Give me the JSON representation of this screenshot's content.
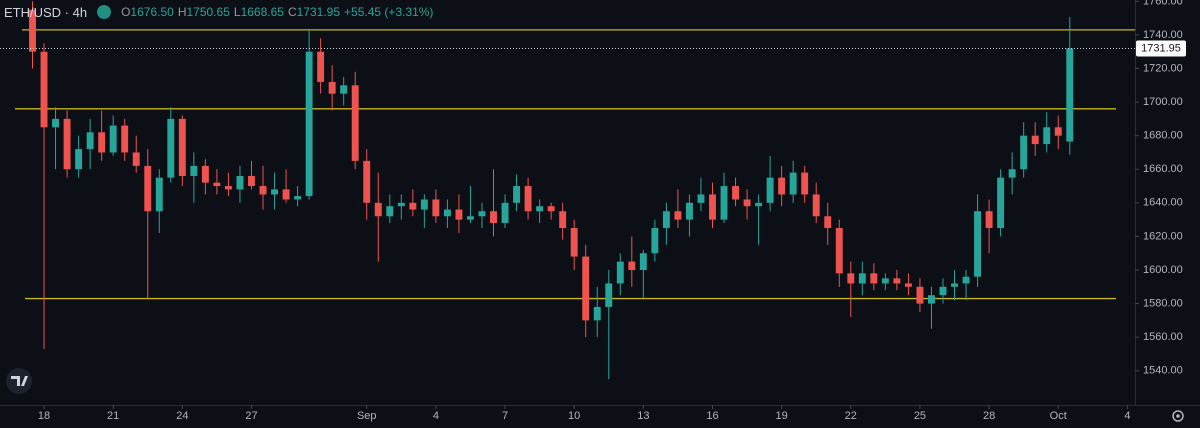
{
  "chart_data": {
    "type": "candlestick",
    "symbol": "ETH/USD · 4h",
    "legend": [
      {
        "key": "O",
        "value": "1676.50"
      },
      {
        "key": "H",
        "value": "1750.65"
      },
      {
        "key": "L",
        "value": "1668.65"
      },
      {
        "key": "C",
        "value": "1731.95"
      },
      {
        "key": "",
        "value": "+55.45 (+3.31%)"
      }
    ],
    "up_color": "#26a69a",
    "down_color": "#ef5350",
    "line_color": "#c8b41c",
    "x": [
      -0.5,
      0,
      0.5,
      1,
      1.5,
      2,
      2.5,
      3,
      3.5,
      4,
      4.5,
      5,
      5.5,
      6,
      6.5,
      7,
      7.5,
      8,
      8.5,
      9,
      9.5,
      10,
      10.5,
      11,
      11.5,
      12,
      12.5,
      13,
      13.5,
      14,
      14.5,
      15,
      15.5,
      16,
      16.5,
      17,
      17.5,
      18,
      18.5,
      19,
      19.5,
      20,
      20.5,
      21,
      21.5,
      22,
      22.5,
      23,
      23.5,
      24,
      24.5,
      25,
      25.5,
      26,
      26.5,
      27,
      27.5,
      28,
      28.5,
      29,
      29.5,
      30,
      30.5,
      31,
      31.5,
      32,
      32.5,
      33,
      33.5,
      34,
      34.5,
      35,
      35.5,
      36,
      36.5,
      37,
      37.5,
      38,
      38.5,
      39,
      39.5,
      40,
      40.5,
      41,
      41.5,
      42,
      42.5,
      43,
      43.5,
      44,
      44.5
    ],
    "open": [
      1755,
      1730,
      1685,
      1690,
      1660,
      1672,
      1682,
      1670,
      1686,
      1670,
      1662,
      1635,
      1655,
      1690,
      1656,
      1662,
      1652,
      1650,
      1648,
      1656,
      1650,
      1645,
      1648,
      1642,
      1644,
      1730,
      1712,
      1705,
      1710,
      1665,
      1640,
      1632,
      1638,
      1640,
      1636,
      1642,
      1632,
      1636,
      1630,
      1632,
      1635,
      1628,
      1640,
      1650,
      1635,
      1638,
      1635,
      1625,
      1608,
      1570,
      1578,
      1592,
      1605,
      1600,
      1610,
      1625,
      1635,
      1630,
      1640,
      1645,
      1630,
      1650,
      1642,
      1638,
      1640,
      1655,
      1645,
      1658,
      1645,
      1632,
      1625,
      1598,
      1592,
      1598,
      1592,
      1595,
      1592,
      1590,
      1580,
      1585,
      1590,
      1592,
      1596,
      1635,
      1625,
      1655,
      1660,
      1680,
      1675,
      1685,
      1676.5
    ],
    "high": [
      1760,
      1735,
      1697,
      1695,
      1680,
      1690,
      1695,
      1692,
      1690,
      1680,
      1672,
      1660,
      1697,
      1692,
      1670,
      1666,
      1660,
      1658,
      1662,
      1665,
      1662,
      1658,
      1660,
      1650,
      1743,
      1738,
      1722,
      1715,
      1718,
      1672,
      1658,
      1645,
      1645,
      1648,
      1645,
      1648,
      1642,
      1645,
      1650,
      1640,
      1660,
      1645,
      1657,
      1655,
      1642,
      1640,
      1640,
      1630,
      1615,
      1590,
      1600,
      1610,
      1620,
      1612,
      1630,
      1640,
      1648,
      1645,
      1655,
      1652,
      1658,
      1655,
      1648,
      1645,
      1668,
      1662,
      1665,
      1662,
      1652,
      1640,
      1630,
      1605,
      1605,
      1604,
      1598,
      1600,
      1598,
      1595,
      1590,
      1595,
      1600,
      1600,
      1645,
      1642,
      1660,
      1670,
      1688,
      1688,
      1694,
      1692,
      1750.65
    ],
    "low": [
      1720,
      1553,
      1660,
      1655,
      1655,
      1660,
      1665,
      1668,
      1665,
      1658,
      1583,
      1622,
      1652,
      1650,
      1640,
      1645,
      1645,
      1644,
      1640,
      1648,
      1636,
      1636,
      1640,
      1638,
      1642,
      1705,
      1695,
      1698,
      1660,
      1630,
      1605,
      1628,
      1630,
      1632,
      1625,
      1628,
      1625,
      1622,
      1628,
      1625,
      1620,
      1625,
      1635,
      1630,
      1628,
      1630,
      1618,
      1600,
      1560,
      1560,
      1535,
      1585,
      1590,
      1583,
      1605,
      1615,
      1625,
      1620,
      1635,
      1625,
      1628,
      1638,
      1630,
      1615,
      1635,
      1638,
      1640,
      1640,
      1628,
      1615,
      1590,
      1572,
      1585,
      1588,
      1588,
      1588,
      1585,
      1575,
      1565,
      1580,
      1582,
      1582,
      1590,
      1610,
      1620,
      1645,
      1655,
      1668,
      1670,
      1672,
      1668.65
    ],
    "close": [
      1730,
      1685,
      1690,
      1660,
      1672,
      1682,
      1670,
      1686,
      1670,
      1662,
      1635,
      1655,
      1690,
      1656,
      1662,
      1652,
      1650,
      1648,
      1656,
      1650,
      1645,
      1648,
      1642,
      1644,
      1730,
      1712,
      1705,
      1710,
      1665,
      1640,
      1632,
      1638,
      1640,
      1636,
      1642,
      1632,
      1636,
      1630,
      1632,
      1635,
      1628,
      1640,
      1650,
      1635,
      1638,
      1635,
      1625,
      1608,
      1570,
      1578,
      1592,
      1605,
      1600,
      1610,
      1625,
      1635,
      1630,
      1640,
      1645,
      1630,
      1650,
      1642,
      1638,
      1640,
      1655,
      1645,
      1658,
      1645,
      1632,
      1625,
      1598,
      1592,
      1598,
      1592,
      1595,
      1592,
      1590,
      1580,
      1585,
      1590,
      1592,
      1596,
      1635,
      1625,
      1655,
      1660,
      1680,
      1675,
      1685,
      1680,
      1731.95
    ],
    "hlines": [
      1743,
      1696,
      1583
    ],
    "xlim": [
      -1.91,
      47.33
    ],
    "xticks": [
      {
        "value": 0,
        "label": "18"
      },
      {
        "value": 3,
        "label": "21"
      },
      {
        "value": 6,
        "label": "24"
      },
      {
        "value": 9,
        "label": "27"
      },
      {
        "value": 14,
        "label": "Sep"
      },
      {
        "value": 17,
        "label": "4"
      },
      {
        "value": 20,
        "label": "7"
      },
      {
        "value": 23,
        "label": "10"
      },
      {
        "value": 26,
        "label": "13"
      },
      {
        "value": 29,
        "label": "16"
      },
      {
        "value": 32,
        "label": "19"
      },
      {
        "value": 35,
        "label": "22"
      },
      {
        "value": 38,
        "label": "25"
      },
      {
        "value": 41,
        "label": "28"
      },
      {
        "value": 44,
        "label": "Oct"
      },
      {
        "value": 47,
        "label": "4"
      }
    ],
    "ylim": [
      1519.6,
      1760.8
    ],
    "yticks": [
      {
        "value": 1540,
        "label": "1540.00"
      },
      {
        "value": 1560,
        "label": "1560.00"
      },
      {
        "value": 1580,
        "label": "1580.00"
      },
      {
        "value": 1600,
        "label": "1600.00"
      },
      {
        "value": 1620,
        "label": "1620.00"
      },
      {
        "value": 1640,
        "label": "1640.00"
      },
      {
        "value": 1660,
        "label": "1660.00"
      },
      {
        "value": 1680,
        "label": "1680.00"
      },
      {
        "value": 1700,
        "label": "1700.00"
      },
      {
        "value": 1720,
        "label": "1720.00"
      },
      {
        "value": 1740,
        "label": "1740.00"
      },
      {
        "value": 1760,
        "label": "1760.00"
      }
    ]
  }
}
